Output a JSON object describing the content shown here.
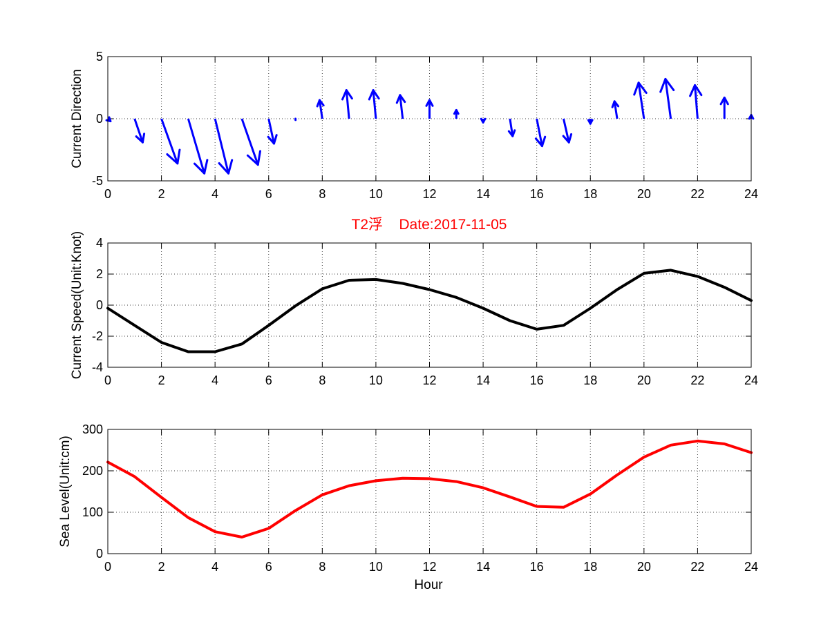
{
  "figure": {
    "background": "#ffffff"
  },
  "chart_data": [
    {
      "type": "quiver",
      "title": "",
      "xlabel": "",
      "ylabel": "Current Direction",
      "xlim": [
        0,
        24
      ],
      "ylim": [
        -5,
        5
      ],
      "xticks": [
        0,
        2,
        4,
        6,
        8,
        10,
        12,
        14,
        16,
        18,
        20,
        22,
        24
      ],
      "yticks": [
        -5,
        0,
        5
      ],
      "grid": true,
      "color": "#0000ff",
      "series": [
        {
          "x": [
            0,
            1,
            2,
            3,
            4,
            5,
            6,
            7,
            8,
            9,
            10,
            11,
            12,
            13,
            14,
            15,
            16,
            17,
            18,
            19,
            20,
            21,
            22,
            23,
            24
          ],
          "u": [
            0.1,
            0.3,
            0.6,
            0.6,
            0.5,
            0.6,
            0.2,
            0.0,
            -0.1,
            -0.1,
            -0.1,
            -0.1,
            0.0,
            0.0,
            0.0,
            0.1,
            0.2,
            0.2,
            0.0,
            -0.1,
            -0.2,
            -0.2,
            -0.1,
            0.0,
            0.0
          ],
          "v": [
            -0.2,
            -1.9,
            -3.6,
            -4.4,
            -4.4,
            -3.7,
            -2.0,
            -0.1,
            1.5,
            2.3,
            2.3,
            1.9,
            1.5,
            0.7,
            -0.3,
            -1.4,
            -2.2,
            -1.9,
            -0.4,
            1.4,
            2.9,
            3.2,
            2.7,
            1.7,
            0.3
          ]
        }
      ]
    },
    {
      "type": "line",
      "title": "T2浮    Date:2017-11-05",
      "xlabel": "",
      "ylabel": "Current Speed(Unit:Knot)",
      "xlim": [
        0,
        24
      ],
      "ylim": [
        -4,
        4
      ],
      "xticks": [
        0,
        2,
        4,
        6,
        8,
        10,
        12,
        14,
        16,
        18,
        20,
        22,
        24
      ],
      "yticks": [
        -4,
        -2,
        0,
        2,
        4
      ],
      "grid": true,
      "color": "#000000",
      "title_color": "#ff0000",
      "series": [
        {
          "x": [
            0,
            1,
            2,
            3,
            4,
            5,
            6,
            7,
            8,
            9,
            10,
            11,
            12,
            13,
            14,
            15,
            16,
            17,
            18,
            19,
            20,
            21,
            22,
            23,
            24
          ],
          "y": [
            -0.2,
            -1.3,
            -2.4,
            -3.0,
            -3.0,
            -2.5,
            -1.3,
            -0.05,
            1.05,
            1.6,
            1.65,
            1.4,
            1.0,
            0.5,
            -0.2,
            -1.0,
            -1.55,
            -1.3,
            -0.2,
            1.0,
            2.05,
            2.25,
            1.85,
            1.15,
            0.3
          ]
        }
      ]
    },
    {
      "type": "line",
      "title": "",
      "xlabel": "Hour",
      "ylabel": "Sea Level(Unit:cm)",
      "xlim": [
        0,
        24
      ],
      "ylim": [
        0,
        300
      ],
      "xticks": [
        0,
        2,
        4,
        6,
        8,
        10,
        12,
        14,
        16,
        18,
        20,
        22,
        24
      ],
      "yticks": [
        0,
        100,
        200,
        300
      ],
      "grid": true,
      "color": "#ff0000",
      "series": [
        {
          "x": [
            0,
            1,
            2,
            3,
            4,
            5,
            6,
            7,
            8,
            9,
            10,
            11,
            12,
            13,
            14,
            15,
            16,
            17,
            18,
            19,
            20,
            21,
            22,
            23,
            24
          ],
          "y": [
            221,
            186,
            136,
            87,
            53,
            40,
            61,
            104,
            142,
            164,
            176,
            182,
            181,
            174,
            159,
            137,
            114,
            112,
            144,
            190,
            233,
            262,
            272,
            265,
            244
          ]
        }
      ]
    }
  ]
}
